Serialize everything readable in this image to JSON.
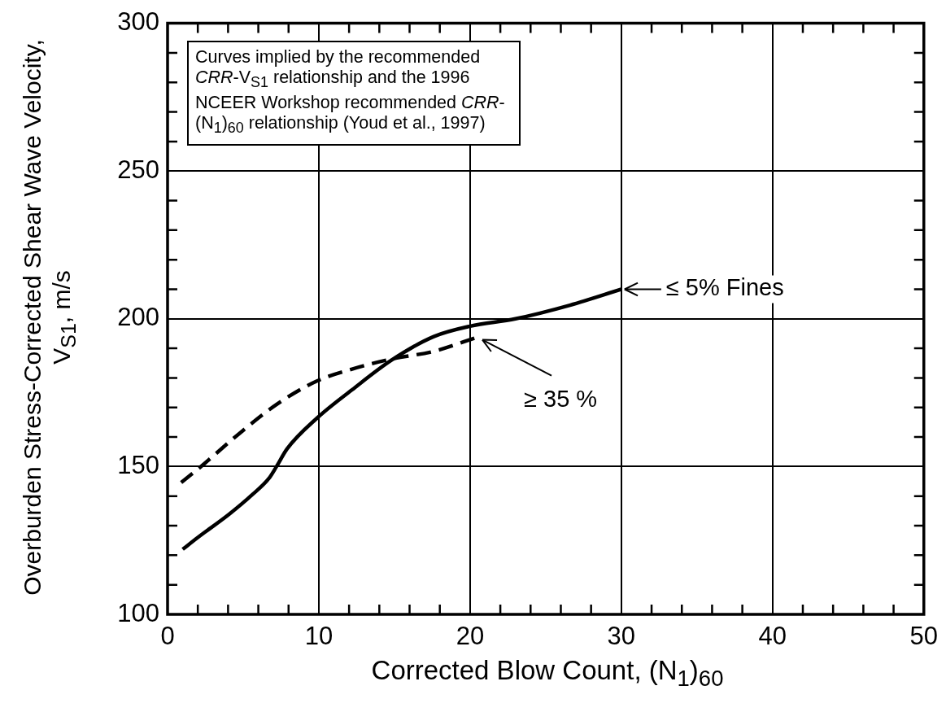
{
  "chart_data": {
    "type": "line",
    "xlabel": "Corrected Blow Count, (N$_{1}$)$_{60}$",
    "ylabel": "Overburden Stress-Corrected Shear Wave Velocity, V$_{S1}$, m/s",
    "series": [
      {
        "color": "#000000",
        "line_style": "solid",
        "x": [
          1,
          2,
          4.1,
          5.6,
          6.7,
          7.2,
          7.9,
          9.9,
          12.2,
          14.8,
          17.6,
          20,
          23,
          26.6,
          30
        ],
        "values": [
          122,
          126,
          134,
          140.5,
          146,
          150,
          156,
          166.5,
          176,
          186,
          194,
          197.5,
          200,
          204.6,
          210
        ]
      },
      {
        "color": "#000000",
        "line_style": "dashed",
        "x": [
          0.9,
          2.2,
          4.7,
          7.2,
          9.9,
          12.2,
          14.9,
          17.6,
          20.6
        ],
        "values": [
          144.6,
          150,
          161,
          171,
          179,
          183,
          186.5,
          189,
          194
        ]
      }
    ],
    "xlim": [
      0,
      50
    ],
    "ylim": [
      100,
      300
    ],
    "xticks": [
      0,
      {
        "value": 2,
        "label": null
      },
      {
        "value": 4,
        "label": null
      },
      {
        "value": 6,
        "label": null
      },
      {
        "value": 8,
        "label": null
      },
      10,
      {
        "value": 12,
        "label": null
      },
      {
        "value": 14,
        "label": null
      },
      {
        "value": 16,
        "label": null
      },
      {
        "value": 18,
        "label": null
      },
      20,
      {
        "value": 22,
        "label": null
      },
      {
        "value": 24,
        "label": null
      },
      {
        "value": 26,
        "label": null
      },
      {
        "value": 28,
        "label": null
      },
      30,
      {
        "value": 32,
        "label": null
      },
      {
        "value": 34,
        "label": null
      },
      {
        "value": 36,
        "label": null
      },
      {
        "value": 38,
        "label": null
      },
      40,
      {
        "value": 42,
        "label": null
      },
      {
        "value": 44,
        "label": null
      },
      {
        "value": 46,
        "label": null
      },
      {
        "value": 48,
        "label": null
      },
      50
    ],
    "yticks": [
      100,
      {
        "value": 110,
        "label": null
      },
      {
        "value": 120,
        "label": null
      },
      {
        "value": 130,
        "label": null
      },
      {
        "value": 140,
        "label": null
      },
      150,
      {
        "value": 160,
        "label": null
      },
      {
        "value": 170,
        "label": null
      },
      {
        "value": 180,
        "label": null
      },
      {
        "value": 190,
        "label": null
      },
      200,
      {
        "value": 210,
        "label": null
      },
      {
        "value": 220,
        "label": null
      },
      {
        "value": 230,
        "label": null
      },
      {
        "value": 240,
        "label": null
      },
      250,
      {
        "value": 260,
        "label": null
      },
      {
        "value": 270,
        "label": null
      },
      {
        "value": 280,
        "label": null
      },
      {
        "value": 290,
        "label": null
      },
      300
    ],
    "grid": true,
    "legend": false,
    "marker": "none",
    "annotations": [
      "Curves implied by the recommended CRR-V$_{S1}$ relationship and the 1996 NCEER Workshop recommended CRR-(N$_{1}$)$_{60}$ relationship (Youd et al., 1997)",
      {
        "text": "≤ 5% Fines",
        "x": 30,
        "y": 210
      },
      {
        "text": "≥ 35 %",
        "x": 20.6,
        "y": 194
      }
    ]
  }
}
